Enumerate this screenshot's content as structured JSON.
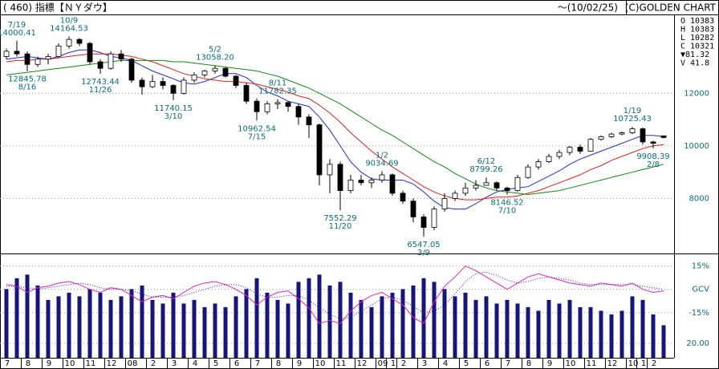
{
  "chart_data": {
    "type": "candlestick",
    "title": "( 460) 指標【ＮＹダウ】",
    "subtitle": "～(10/02/25)",
    "source": "(C)GOLDEN CHART",
    "info": [
      "O 10383",
      "H 10383",
      "L 10282",
      "C 10321",
      "▼81.32",
      "V  41.8"
    ],
    "categories": [
      "7",
      null,
      "8",
      null,
      "9",
      null,
      "10",
      null,
      "11",
      null,
      "12",
      null,
      "08",
      null,
      "2",
      null,
      "3",
      null,
      "4",
      null,
      "5",
      null,
      "6",
      null,
      "7",
      null,
      "8",
      null,
      "9",
      null,
      "10",
      null,
      "11",
      null,
      "12",
      null,
      "09",
      "1",
      "2",
      null,
      "3",
      null,
      "4",
      null,
      "5",
      null,
      "6",
      null,
      "7",
      null,
      "8",
      null,
      "9",
      null,
      "10",
      null,
      "11",
      null,
      "12",
      null,
      "10",
      "1",
      "2",
      null
    ],
    "open": [
      13400,
      13600,
      13500,
      13100,
      13300,
      13400,
      13800,
      14050,
      13900,
      13200,
      12950,
      13500,
      13300,
      12500,
      12250,
      12450,
      12300,
      12000,
      12500,
      12700,
      12850,
      12950,
      12650,
      12300,
      11700,
      11300,
      11600,
      11650,
      11500,
      11100,
      10800,
      8900,
      9300,
      8300,
      8700,
      8600,
      8700,
      8900,
      8200,
      7900,
      7300,
      6900,
      7600,
      8000,
      8200,
      8400,
      8500,
      8600,
      8400,
      8300,
      8800,
      9200,
      9400,
      9600,
      9750,
      9950,
      9800,
      10250,
      10350,
      10450,
      10500,
      10650,
      10150,
      10383
    ],
    "high": [
      13700,
      14000.41,
      13600,
      13400,
      13500,
      13900,
      14164.53,
      14100,
      13950,
      13300,
      13600,
      13650,
      13350,
      12600,
      12700,
      12600,
      12350,
      12600,
      12800,
      12900,
      13058.2,
      13000,
      12700,
      12400,
      11800,
      11700,
      11782.35,
      11700,
      11600,
      11200,
      10850,
      9500,
      9400,
      8900,
      8900,
      8800,
      9034.69,
      8950,
      8300,
      8000,
      7400,
      7700,
      8200,
      8300,
      8600,
      8700,
      8799.26,
      8650,
      8450,
      8900,
      9300,
      9500,
      9700,
      9850,
      10000,
      10050,
      10300,
      10400,
      10500,
      10550,
      10725.43,
      10700,
      10200,
      10383
    ],
    "low": [
      13300,
      13400,
      12845.78,
      13000,
      13100,
      13350,
      13700,
      13800,
      13100,
      12743.44,
      12900,
      13200,
      12400,
      11950,
      12200,
      12150,
      11740.15,
      11950,
      12400,
      12600,
      12750,
      12600,
      12200,
      11600,
      10962.54,
      11200,
      11400,
      11300,
      10800,
      10300,
      8500,
      8200,
      7552.29,
      8200,
      8500,
      8400,
      8600,
      8100,
      7800,
      7100,
      6547.05,
      6800,
      7500,
      7900,
      8100,
      8300,
      8500,
      8300,
      8146.52,
      8250,
      8750,
      9100,
      9350,
      9500,
      9650,
      9700,
      9800,
      10200,
      10300,
      10400,
      10450,
      10050,
      9908.39,
      10282
    ],
    "close": [
      13600,
      13500,
      13100,
      13300,
      13400,
      13800,
      14050,
      13900,
      13200,
      12950,
      13500,
      13300,
      12500,
      12250,
      12450,
      12300,
      12000,
      12500,
      12700,
      12850,
      12950,
      12650,
      12300,
      11700,
      11300,
      11600,
      11650,
      11500,
      11100,
      10800,
      8900,
      9300,
      8300,
      8700,
      8600,
      8700,
      8900,
      8200,
      7900,
      7300,
      6900,
      7600,
      8000,
      8200,
      8400,
      8500,
      8600,
      8400,
      8300,
      8800,
      9200,
      9400,
      9600,
      9750,
      9950,
      9800,
      10250,
      10350,
      10450,
      10500,
      10650,
      10150,
      10100,
      10321
    ],
    "up_color": "#ffffff",
    "down_color": "#000000",
    "ylim": [
      6000,
      15000
    ],
    "yticks": [
      8000,
      10000,
      12000
    ],
    "grid": true,
    "moving_averages": [
      {
        "color": "#1f2bd8",
        "values": [
          13300,
          13350,
          13400,
          13350,
          13300,
          13400,
          13550,
          13650,
          13650,
          13550,
          13400,
          13350,
          13250,
          13050,
          12850,
          12700,
          12550,
          12400,
          12350,
          12450,
          12600,
          12750,
          12750,
          12600,
          12300,
          12050,
          11900,
          11700,
          11600,
          11500,
          11100,
          10600,
          10000,
          9400,
          9000,
          8750,
          8700,
          8700,
          8700,
          8550,
          8250,
          7900,
          7650,
          7600,
          7600,
          7800,
          8050,
          8250,
          8350,
          8400,
          8450,
          8650,
          8850,
          9050,
          9300,
          9500,
          9650,
          9800,
          9950,
          10100,
          10250,
          10400,
          10400,
          10350
        ]
      },
      {
        "color": "#e0201c",
        "values": [
          13200,
          13250,
          13250,
          13300,
          13300,
          13350,
          13400,
          13450,
          13500,
          13500,
          13500,
          13450,
          13400,
          13300,
          13200,
          13050,
          12900,
          12750,
          12650,
          12550,
          12500,
          12450,
          12450,
          12400,
          12350,
          12250,
          12150,
          12050,
          11900,
          11800,
          11550,
          11250,
          10900,
          10500,
          10150,
          9800,
          9500,
          9200,
          8950,
          8700,
          8450,
          8250,
          8100,
          8000,
          7950,
          7950,
          8000,
          8050,
          8050,
          8100,
          8200,
          8300,
          8450,
          8600,
          8750,
          8900,
          9100,
          9250,
          9450,
          9600,
          9750,
          9900,
          10000,
          10050
        ]
      },
      {
        "color": "#108a10",
        "values": [
          12700,
          12750,
          12800,
          12850,
          12900,
          12950,
          13000,
          13050,
          13100,
          13150,
          13200,
          13250,
          13250,
          13250,
          13250,
          13250,
          13200,
          13200,
          13150,
          13100,
          13050,
          13000,
          12950,
          12900,
          12850,
          12750,
          12650,
          12500,
          12350,
          12200,
          12000,
          11800,
          11600,
          11350,
          11100,
          10850,
          10600,
          10400,
          10150,
          9900,
          9650,
          9400,
          9200,
          8950,
          8750,
          8550,
          8400,
          8300,
          8250,
          8200,
          8150,
          8200,
          8250,
          8300,
          8400,
          8500,
          8600,
          8700,
          8800,
          8900,
          9000,
          9100,
          9200,
          9300
        ]
      }
    ],
    "volume": {
      "color": "#16167a",
      "ylim": [
        0,
        142
      ],
      "yticks": [
        {
          "value": 20,
          "label": "20.00"
        }
      ],
      "values": [
        95,
        110,
        115,
        100,
        80,
        85,
        90,
        85,
        95,
        90,
        80,
        85,
        95,
        100,
        80,
        75,
        90,
        75,
        80,
        70,
        75,
        70,
        85,
        95,
        110,
        90,
        80,
        75,
        105,
        110,
        115,
        100,
        105,
        90,
        80,
        70,
        85,
        90,
        95,
        100,
        110,
        105,
        95,
        85,
        90,
        80,
        85,
        75,
        80,
        75,
        70,
        65,
        80,
        75,
        80,
        70,
        70,
        65,
        60,
        65,
        85,
        80,
        60,
        45
      ]
    },
    "oscillator": {
      "ylim": [
        -44,
        22
      ],
      "yticks": [
        {
          "value": 15,
          "label": "15%"
        },
        {
          "value": 0,
          "label": "GCV"
        },
        {
          "value": -15,
          "label": "-15%"
        }
      ],
      "series": [
        {
          "color": "#e020c0",
          "values": [
            3,
            2,
            -2,
            1,
            2,
            4,
            5,
            3,
            0,
            -2,
            1,
            0,
            -4,
            -8,
            -5,
            -4,
            -6,
            -2,
            2,
            4,
            5,
            3,
            0,
            -4,
            -10,
            -5,
            -2,
            -1,
            -6,
            -12,
            -22,
            -20,
            -22,
            -14,
            -8,
            -4,
            -2,
            -6,
            -10,
            -18,
            -22,
            -8,
            2,
            8,
            15,
            12,
            8,
            4,
            0,
            4,
            8,
            10,
            8,
            6,
            4,
            3,
            2,
            4,
            3,
            2,
            4,
            0,
            -2,
            -1
          ]
        },
        {
          "color": "#2020c0",
          "dashed": true,
          "values": [
            2,
            2,
            1,
            0,
            1,
            2,
            3,
            4,
            3,
            1,
            0,
            0,
            -1,
            -3,
            -5,
            -5,
            -5,
            -4,
            -2,
            0,
            2,
            3,
            3,
            1,
            -3,
            -5,
            -5,
            -4,
            -4,
            -7,
            -12,
            -16,
            -19,
            -18,
            -14,
            -10,
            -6,
            -5,
            -7,
            -11,
            -15,
            -14,
            -10,
            -3,
            5,
            10,
            11,
            9,
            6,
            4,
            5,
            7,
            8,
            7,
            6,
            4,
            3,
            3,
            3,
            3,
            3,
            2,
            1,
            0
          ]
        }
      ]
    },
    "annotations": [
      {
        "kind": "high",
        "date": "7/19",
        "label": "14000.41"
      },
      {
        "kind": "low",
        "date": "8/16",
        "label": "12845.78"
      },
      {
        "kind": "high",
        "date": "10/9",
        "label": "14164.53"
      },
      {
        "kind": "low",
        "date": "11/26",
        "label": "12743.44"
      },
      {
        "kind": "low",
        "date": "3/10",
        "label": "11740.15"
      },
      {
        "kind": "high",
        "date": "5/2",
        "label": "13058.20"
      },
      {
        "kind": "low",
        "date": "7/15",
        "label": "10962.54"
      },
      {
        "kind": "high",
        "date": "8/11",
        "label": "11782.35"
      },
      {
        "kind": "low",
        "date": "11/20",
        "label": "7552.29"
      },
      {
        "kind": "high",
        "date": "1/2",
        "label": "9034.69"
      },
      {
        "kind": "low",
        "date": "3/9",
        "label": "6547.05"
      },
      {
        "kind": "high",
        "date": "6/12",
        "label": "8799.26"
      },
      {
        "kind": "low",
        "date": "7/10",
        "label": "8146.52"
      },
      {
        "kind": "high",
        "date": "1/19",
        "label": "10725.43"
      },
      {
        "kind": "low",
        "date": "2/8",
        "label": "9908.39"
      }
    ]
  }
}
